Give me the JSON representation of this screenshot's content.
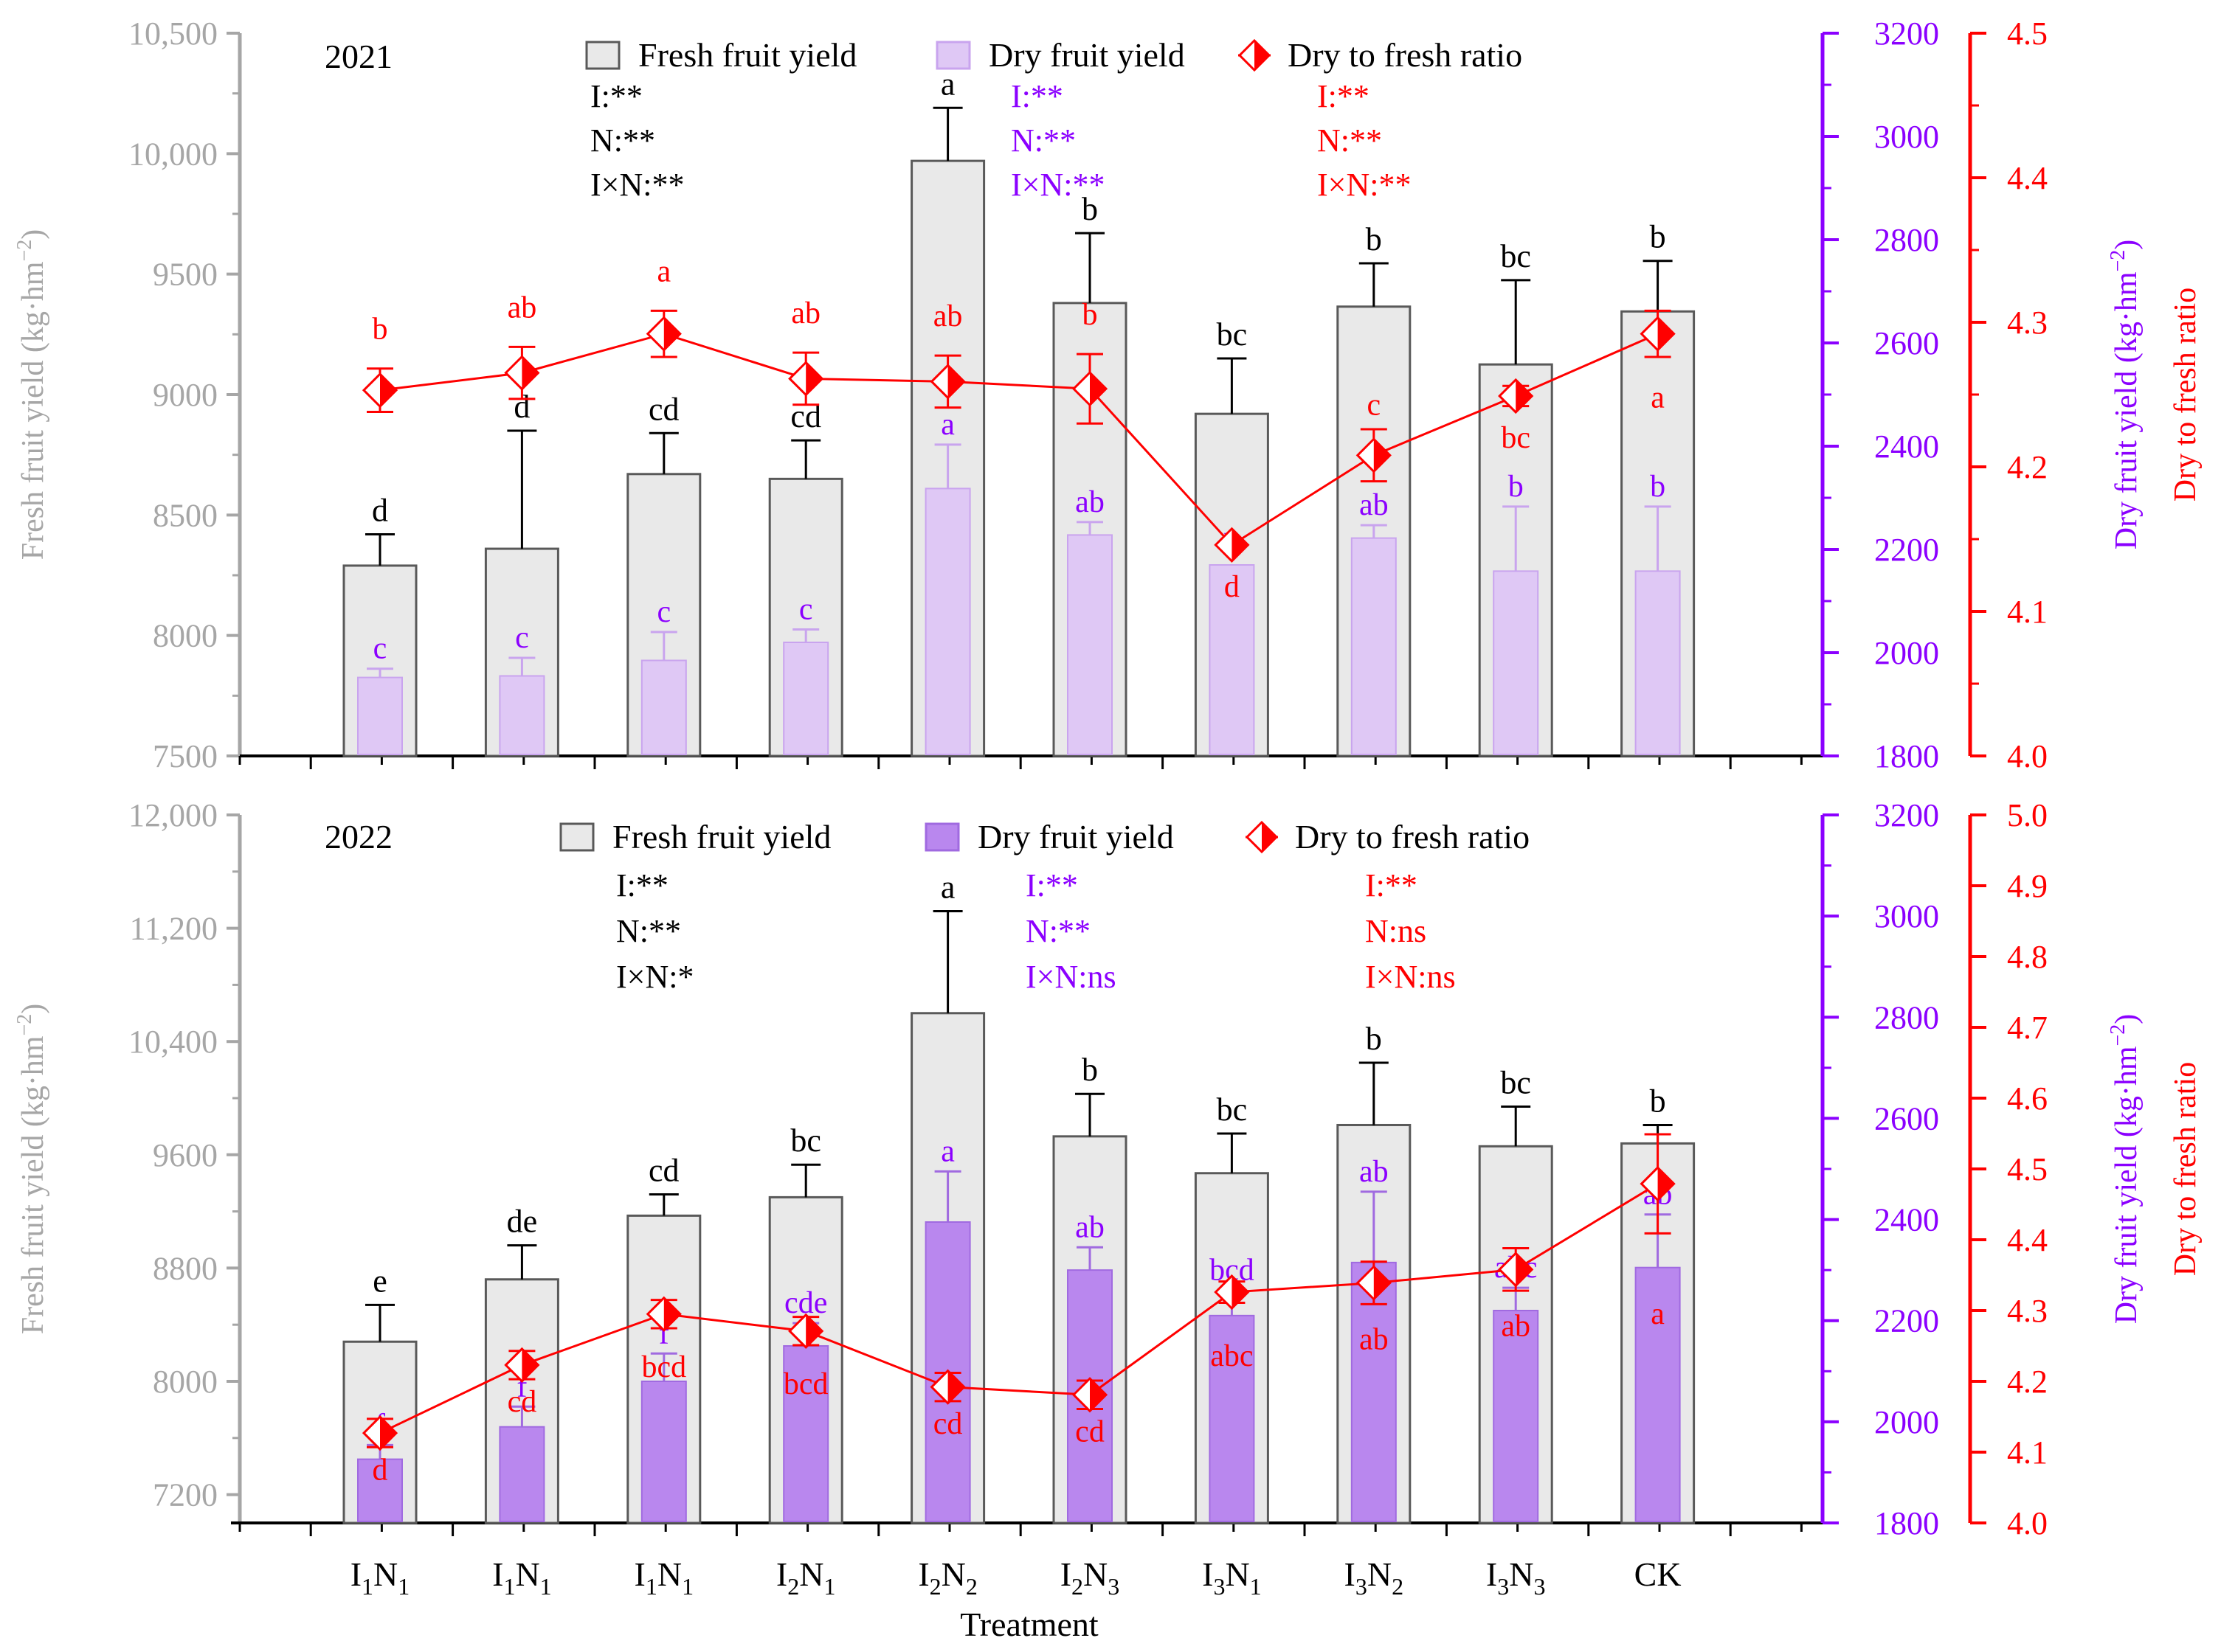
{
  "figure": {
    "x_title": "Treatment",
    "categories_sub": [
      [
        "1",
        "1"
      ],
      [
        "1",
        "1"
      ],
      [
        "1",
        "1"
      ],
      [
        "2",
        "1"
      ],
      [
        "2",
        "2"
      ],
      [
        "2",
        "3"
      ],
      [
        "3",
        "1"
      ],
      [
        "3",
        "2"
      ],
      [
        "3",
        "3"
      ],
      [
        "",
        ""
      ]
    ],
    "categories_base": [
      [
        "I",
        "N"
      ],
      [
        "I",
        "N"
      ],
      [
        "I",
        "N"
      ],
      [
        "I",
        "N"
      ],
      [
        "I",
        "N"
      ],
      [
        "I",
        "N"
      ],
      [
        "I",
        "N"
      ],
      [
        "I",
        "N"
      ],
      [
        "I",
        "N"
      ],
      [
        "CK",
        ""
      ]
    ],
    "colors": {
      "axis_left": "#a6a6a6",
      "axis_dry": "#8b00ff",
      "axis_ratio": "#ff0000",
      "fresh_fill": "#e9e9e9",
      "fresh_stroke": "#595959",
      "ratio_line": "#ff0000",
      "text_black": "#000000",
      "text_purple": "#8b00ff",
      "text_red": "#ff0000"
    }
  },
  "chart_data": [
    {
      "type": "bar",
      "title": "2021",
      "categories": [
        "I1N1",
        "I1N1",
        "I1N1",
        "I2N1",
        "I2N2",
        "I2N3",
        "I3N1",
        "I3N2",
        "I3N3",
        "CK"
      ],
      "ylabel_left_text": "Fresh fruit yield (kg·hm",
      "ylabel_right1_text": "Dry fruit yield (kg·hm",
      "ylabel_right2": "Dry to fresh ratio",
      "unit_sup": "−2",
      "ylim_left": [
        7500,
        10500
      ],
      "yticks_left": [
        "7500",
        "8000",
        "8500",
        "9000",
        "9500",
        "10,000",
        "10,500"
      ],
      "ylim_right1": [
        1800,
        3200
      ],
      "yticks_right1": [
        "1800",
        "2000",
        "2200",
        "2400",
        "2600",
        "2800",
        "3000",
        "3200"
      ],
      "ylim_right2": [
        4.0,
        4.5
      ],
      "yticks_right2": [
        "4.0",
        "4.1",
        "4.2",
        "4.3",
        "4.4",
        "4.5"
      ],
      "dry_bar_color": "#dfc8f5",
      "dry_bar_stroke": "#c9a4ee",
      "legend": {
        "fresh": "Fresh fruit yield",
        "dry": "Dry fruit yield",
        "ratio": "Dry to fresh ratio"
      },
      "series": [
        {
          "name": "Fresh fruit yield",
          "values": [
            8290,
            8360,
            8670,
            8650,
            9970,
            9380,
            8920,
            9365,
            9125,
            9345
          ],
          "err": [
            130,
            490,
            170,
            160,
            220,
            290,
            230,
            180,
            350,
            210
          ],
          "letters": [
            "d",
            "d",
            "cd",
            "cd",
            "a",
            "b",
            "bc",
            "b",
            "bc",
            "b"
          ]
        },
        {
          "name": "Dry fruit yield",
          "values": [
            1952,
            1955,
            1985,
            2020,
            2318,
            2228,
            2170,
            2222,
            2158,
            2158
          ],
          "err": [
            17,
            35,
            55,
            25,
            85,
            25,
            0,
            25,
            125,
            125
          ],
          "letters": [
            "c",
            "c",
            "c",
            "c",
            "a",
            "ab",
            "b",
            "ab",
            "b",
            "b"
          ]
        },
        {
          "name": "Dry to fresh ratio",
          "values": [
            4.253,
            4.265,
            4.292,
            4.261,
            4.259,
            4.254,
            4.146,
            4.208,
            4.249,
            4.292
          ],
          "err": [
            0.015,
            0.018,
            0.016,
            0.018,
            0.018,
            0.024,
            0,
            0.018,
            0.007,
            0.016
          ],
          "letters": [
            "b",
            "ab",
            "a",
            "ab",
            "ab",
            "b",
            "d",
            "c",
            "bc",
            "a"
          ]
        }
      ],
      "anova": {
        "black": [
          "I:**",
          "N:**",
          "I×N:**"
        ],
        "purple": [
          "I:**",
          "N:**",
          "I×N:**"
        ],
        "red": [
          "I:**",
          "N:**",
          "I×N:**"
        ]
      }
    },
    {
      "type": "bar",
      "title": "2022",
      "categories": [
        "I1N1",
        "I1N1",
        "I1N1",
        "I2N1",
        "I2N2",
        "I2N3",
        "I3N1",
        "I3N2",
        "I3N3",
        "CK"
      ],
      "ylabel_left_text": "Fresh fruit yield (kg·hm",
      "ylabel_right1_text": "Dry fruit yield (kg·hm",
      "ylabel_right2": "Dry to fresh ratio",
      "unit_sup": "−2",
      "ylim_left": [
        7000,
        12000
      ],
      "yticks_left": [
        "7200",
        "8000",
        "8800",
        "9600",
        "10,400",
        "11,200",
        "12,000"
      ],
      "ylim_right1": [
        1800,
        3200
      ],
      "yticks_right1": [
        "1800",
        "2000",
        "2200",
        "2400",
        "2600",
        "2800",
        "3000",
        "3200"
      ],
      "ylim_right2": [
        4.0,
        5.0
      ],
      "yticks_right2": [
        "4.0",
        "4.1",
        "4.2",
        "4.3",
        "4.4",
        "4.5",
        "4.6",
        "4.7",
        "4.8",
        "4.9",
        "5.0"
      ],
      "dry_bar_color": "#b987ee",
      "dry_bar_stroke": "#a06ae0",
      "legend": {
        "fresh": "Fresh fruit yield",
        "dry": "Dry fruit yield",
        "ratio": "Dry to fresh ratio"
      },
      "series": [
        {
          "name": "Fresh fruit yield",
          "values": [
            8280,
            8720,
            9170,
            9300,
            10600,
            9730,
            9470,
            9810,
            9660,
            9680
          ],
          "err": [
            260,
            240,
            150,
            230,
            720,
            300,
            280,
            440,
            280,
            130
          ],
          "letters": [
            "e",
            "de",
            "cd",
            "bc",
            "a",
            "b",
            "bc",
            "b",
            "bc",
            "b"
          ]
        },
        {
          "name": "Dry fruit yield",
          "values": [
            1926,
            1990,
            2080,
            2150,
            2395,
            2300,
            2210,
            2315,
            2220,
            2305
          ],
          "err": [
            28,
            40,
            55,
            45,
            100,
            45,
            50,
            140,
            45,
            105
          ],
          "letters": [
            "f",
            "f",
            "f",
            "cde",
            "a",
            "ab",
            "bcd",
            "ab",
            "abc",
            "ab"
          ]
        },
        {
          "name": "Dry to fresh ratio",
          "values": [
            4.127,
            4.223,
            4.295,
            4.271,
            4.192,
            4.181,
            4.326,
            4.339,
            4.358,
            4.479
          ],
          "err": [
            0.02,
            0.02,
            0.02,
            0.02,
            0.02,
            0.02,
            0.015,
            0.03,
            0.03,
            0.07
          ],
          "letters": [
            "d",
            "cd",
            "bcd",
            "bcd",
            "cd",
            "cd",
            "abc",
            "ab",
            "ab",
            "a"
          ]
        }
      ],
      "anova": {
        "black": [
          "I:**",
          "N:**",
          "I×N:*"
        ],
        "purple": [
          "I:**",
          "N:**",
          "I×N:ns"
        ],
        "red": [
          "I:**",
          "N:ns",
          "I×N:ns"
        ]
      }
    }
  ]
}
